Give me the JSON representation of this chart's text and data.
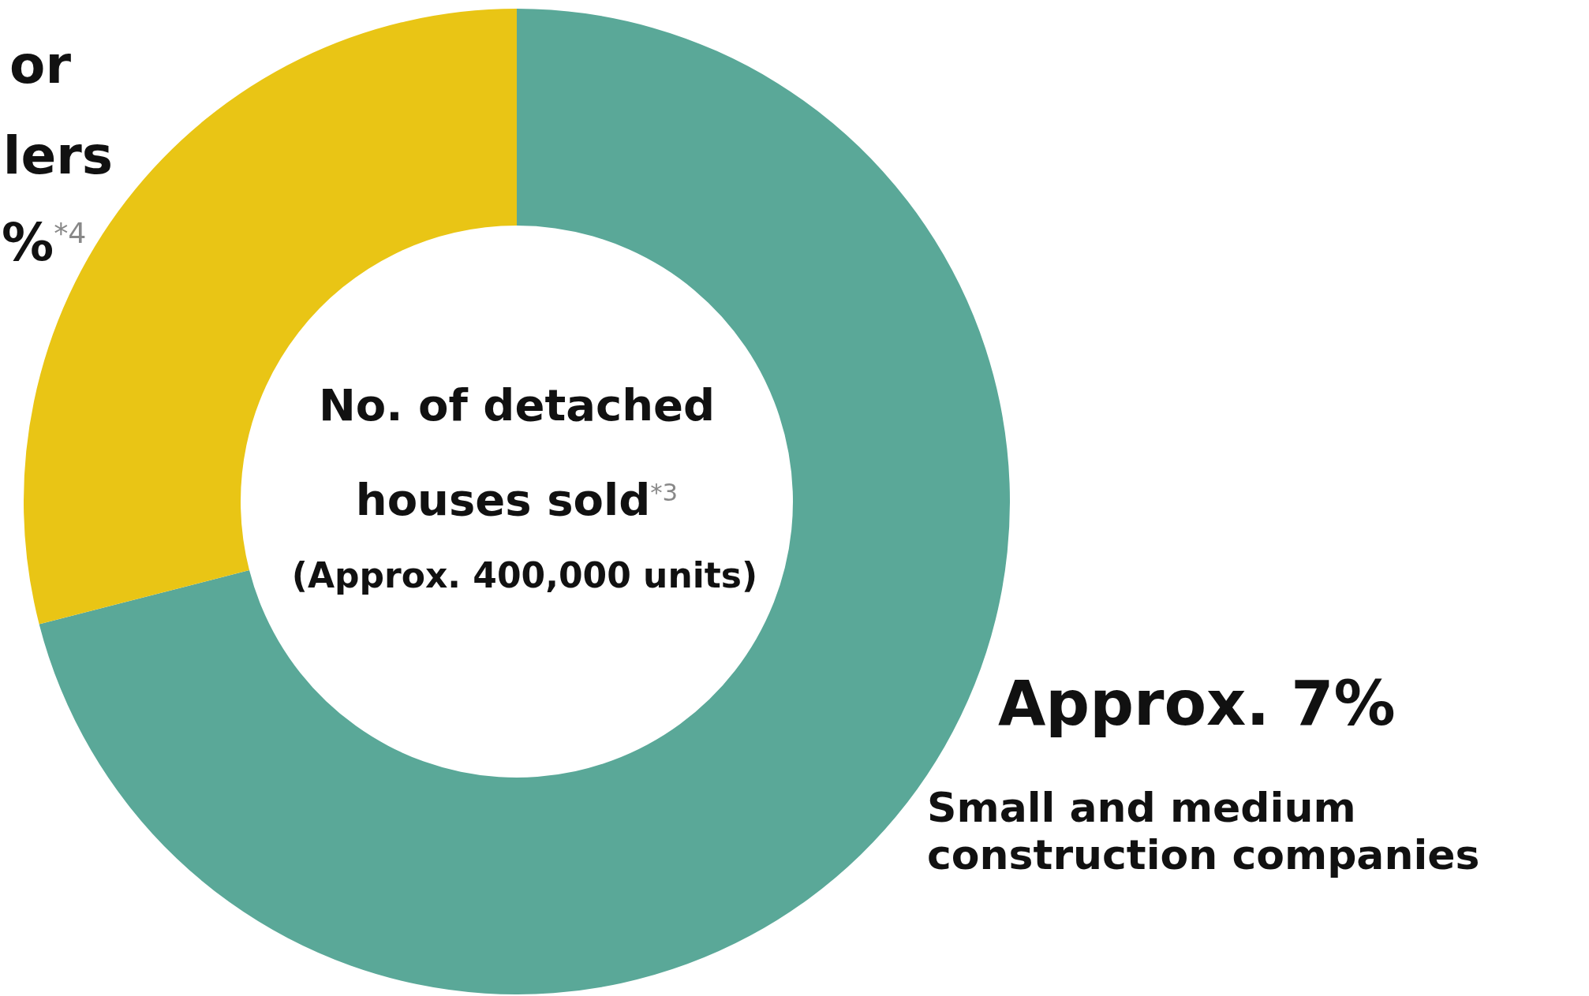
{
  "chart_data": {
    "type": "donut",
    "title": "No. of detached houses sold$^{*3}$",
    "subtitle": "(Approx. 400,000 units)",
    "categories": [
      "Small and medium construction companies",
      null
    ],
    "values": [
      71,
      29
    ],
    "colors": [
      "#5aa898",
      "#e9c515"
    ],
    "annotations": [
      "or",
      "lers",
      "%$^{*4}$",
      "Approx. 7%"
    ]
  }
}
